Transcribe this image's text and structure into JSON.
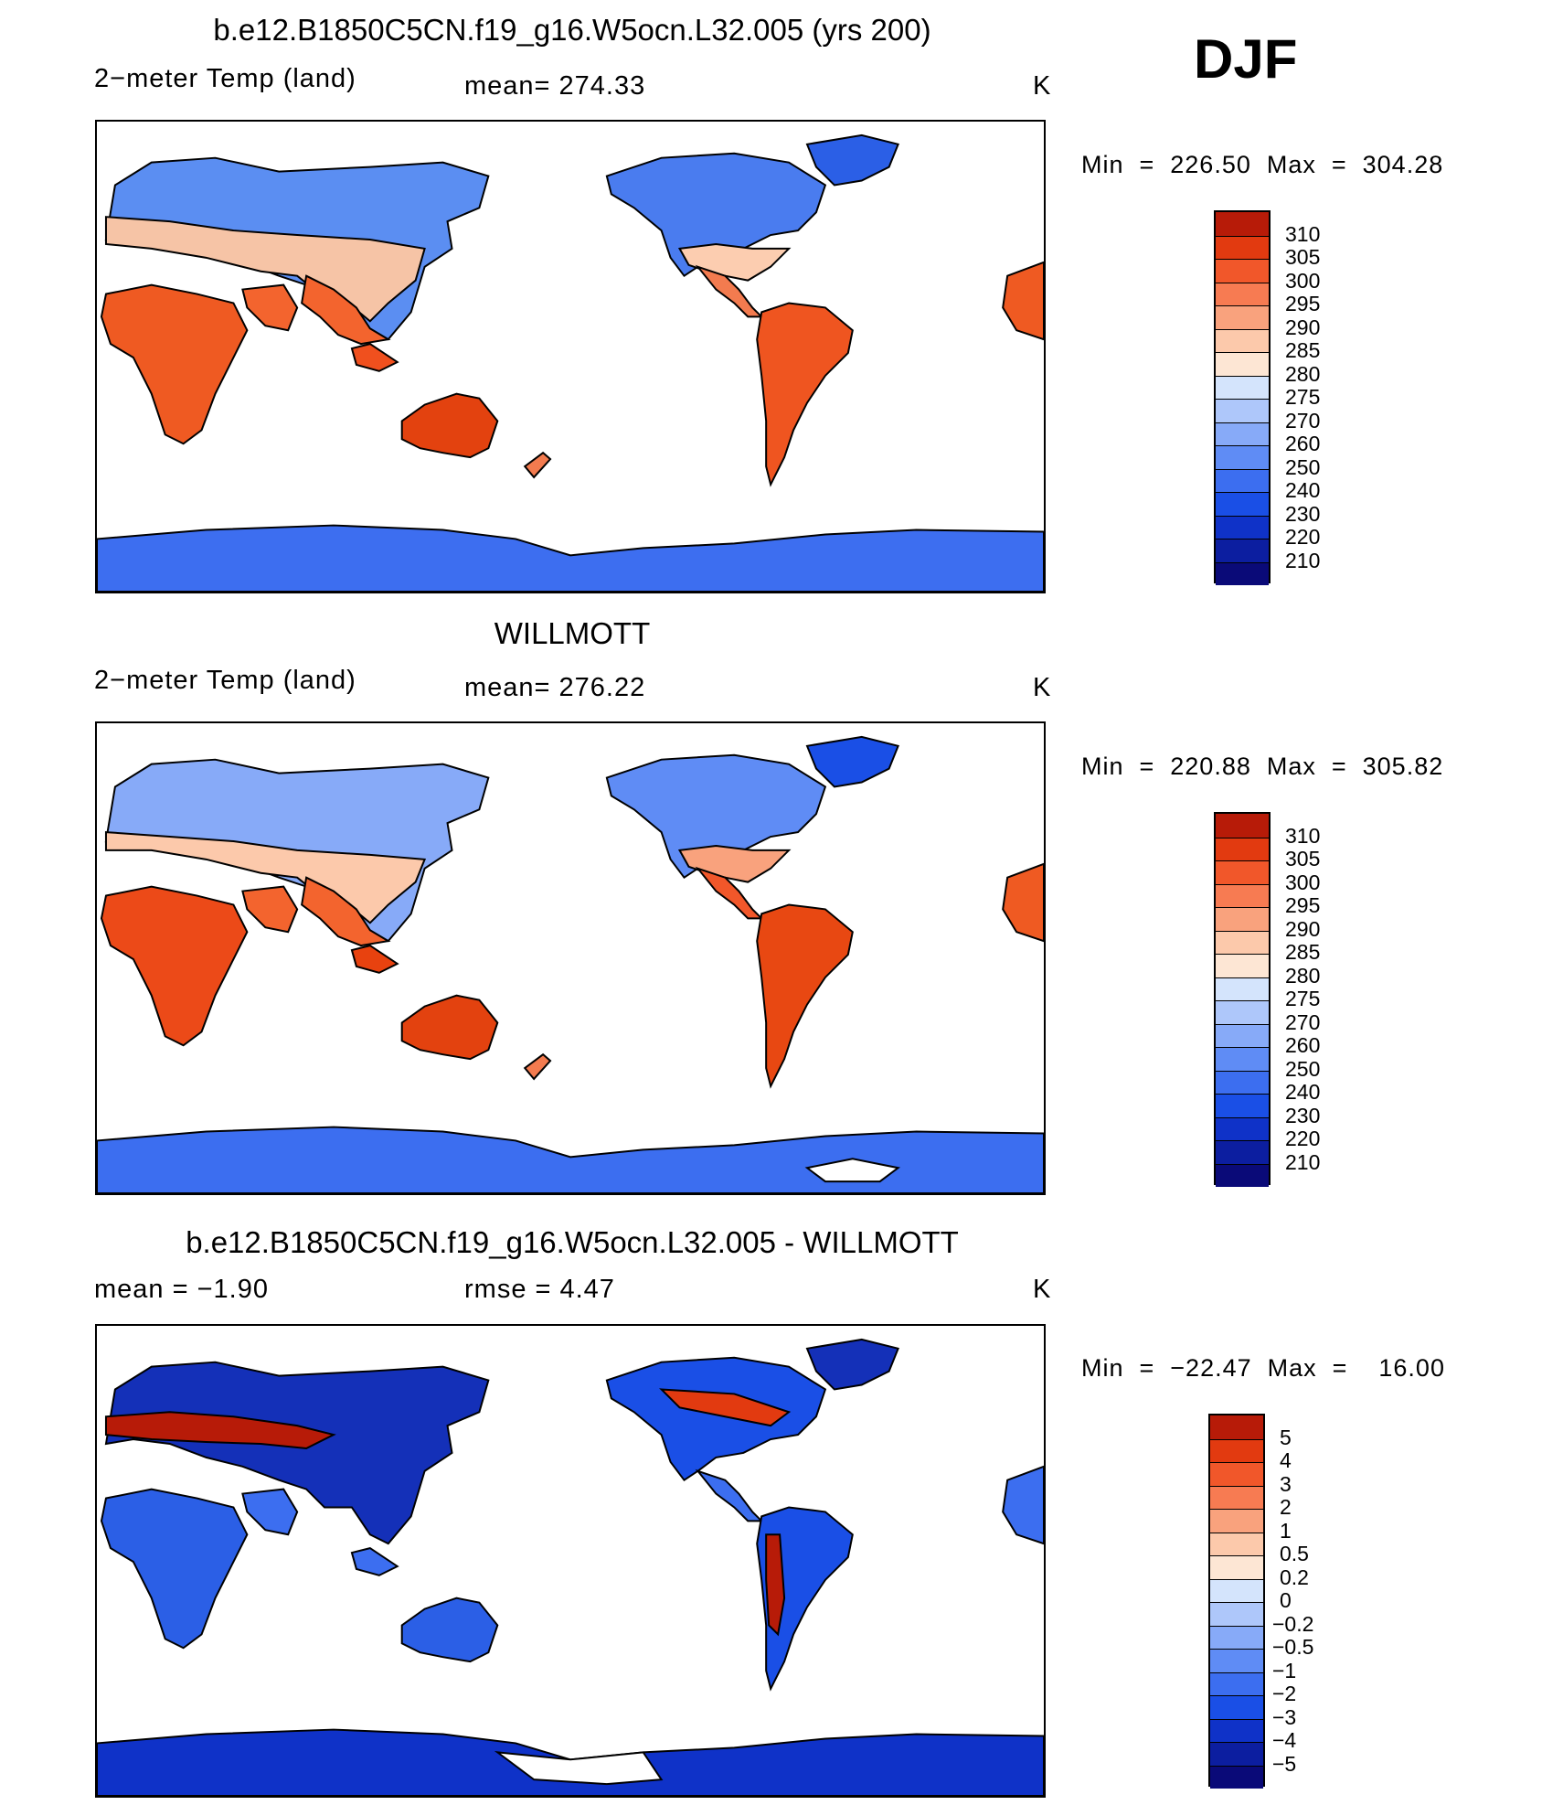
{
  "season": "DJF",
  "colors": {
    "abs": [
      "#0a0a78",
      "#0c1ea0",
      "#0f32c8",
      "#1a4fe6",
      "#3c6ef0",
      "#5f8cf5",
      "#87aaf8",
      "#aec7fa",
      "#d4e4fc",
      "#fde6d4",
      "#fcc9ab",
      "#f9a27d",
      "#f77b52",
      "#f1572a",
      "#e23a10",
      "#b71b08",
      "#7a0a04"
    ],
    "diff": [
      "#0a0a78",
      "#0c1ea0",
      "#0f32c8",
      "#1a4fe6",
      "#3c6ef0",
      "#5f8cf5",
      "#87aaf8",
      "#aec7fa",
      "#d4e4fc",
      "#fde6d4",
      "#fcc9ab",
      "#f9a27d",
      "#f77b52",
      "#f1572a",
      "#e23a10",
      "#b71b08",
      "#7a0a04"
    ]
  },
  "panels": [
    {
      "title": "b.e12.B1850C5CN.f19_g16.W5ocn.L32.005 (yrs 200)",
      "left_text": "2−meter Temp (land)",
      "mid_text": "mean=  274.33",
      "unit": "K",
      "minmax": "Min  =  226.50  Max  =  304.28",
      "colorbar_labels": [
        "310",
        "305",
        "300",
        "295",
        "290",
        "285",
        "280",
        "275",
        "270",
        "260",
        "250",
        "240",
        "230",
        "220",
        "210"
      ],
      "scale": "abs"
    },
    {
      "title": "WILLMOTT",
      "left_text": "2−meter Temp (land)",
      "mid_text": "mean=  276.22",
      "unit": "K",
      "minmax": "Min  =  220.88  Max  =  305.82",
      "colorbar_labels": [
        "310",
        "305",
        "300",
        "295",
        "290",
        "285",
        "280",
        "275",
        "270",
        "260",
        "250",
        "240",
        "230",
        "220",
        "210"
      ],
      "scale": "abs"
    },
    {
      "title": "b.e12.B1850C5CN.f19_g16.W5ocn.L32.005 - WILLMOTT",
      "left_text": "mean  =    −1.90",
      "mid_text": "rmse  =     4.47",
      "unit": "K",
      "minmax": "Min  =  −22.47  Max  =    16.00",
      "colorbar_labels": [
        "5",
        "4",
        "3",
        "2",
        "1",
        "0.5",
        "0.2",
        "0",
        "−0.2",
        "−0.5",
        "−1",
        "−2",
        "−3",
        "−4",
        "−5"
      ],
      "scale": "diff"
    }
  ]
}
